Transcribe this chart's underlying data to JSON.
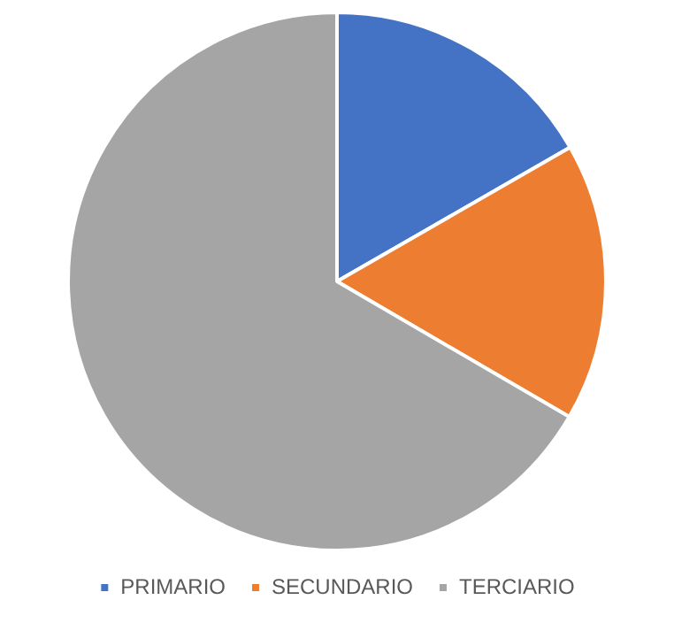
{
  "chart_data": {
    "type": "pie",
    "categories": [
      "PRIMARIO",
      "SECUNDARIO",
      "TERCIARIO"
    ],
    "values": [
      16.7,
      16.7,
      66.6
    ],
    "colors": [
      "#4472c4",
      "#ed7d31",
      "#a5a5a5"
    ],
    "legend": "bottom"
  }
}
